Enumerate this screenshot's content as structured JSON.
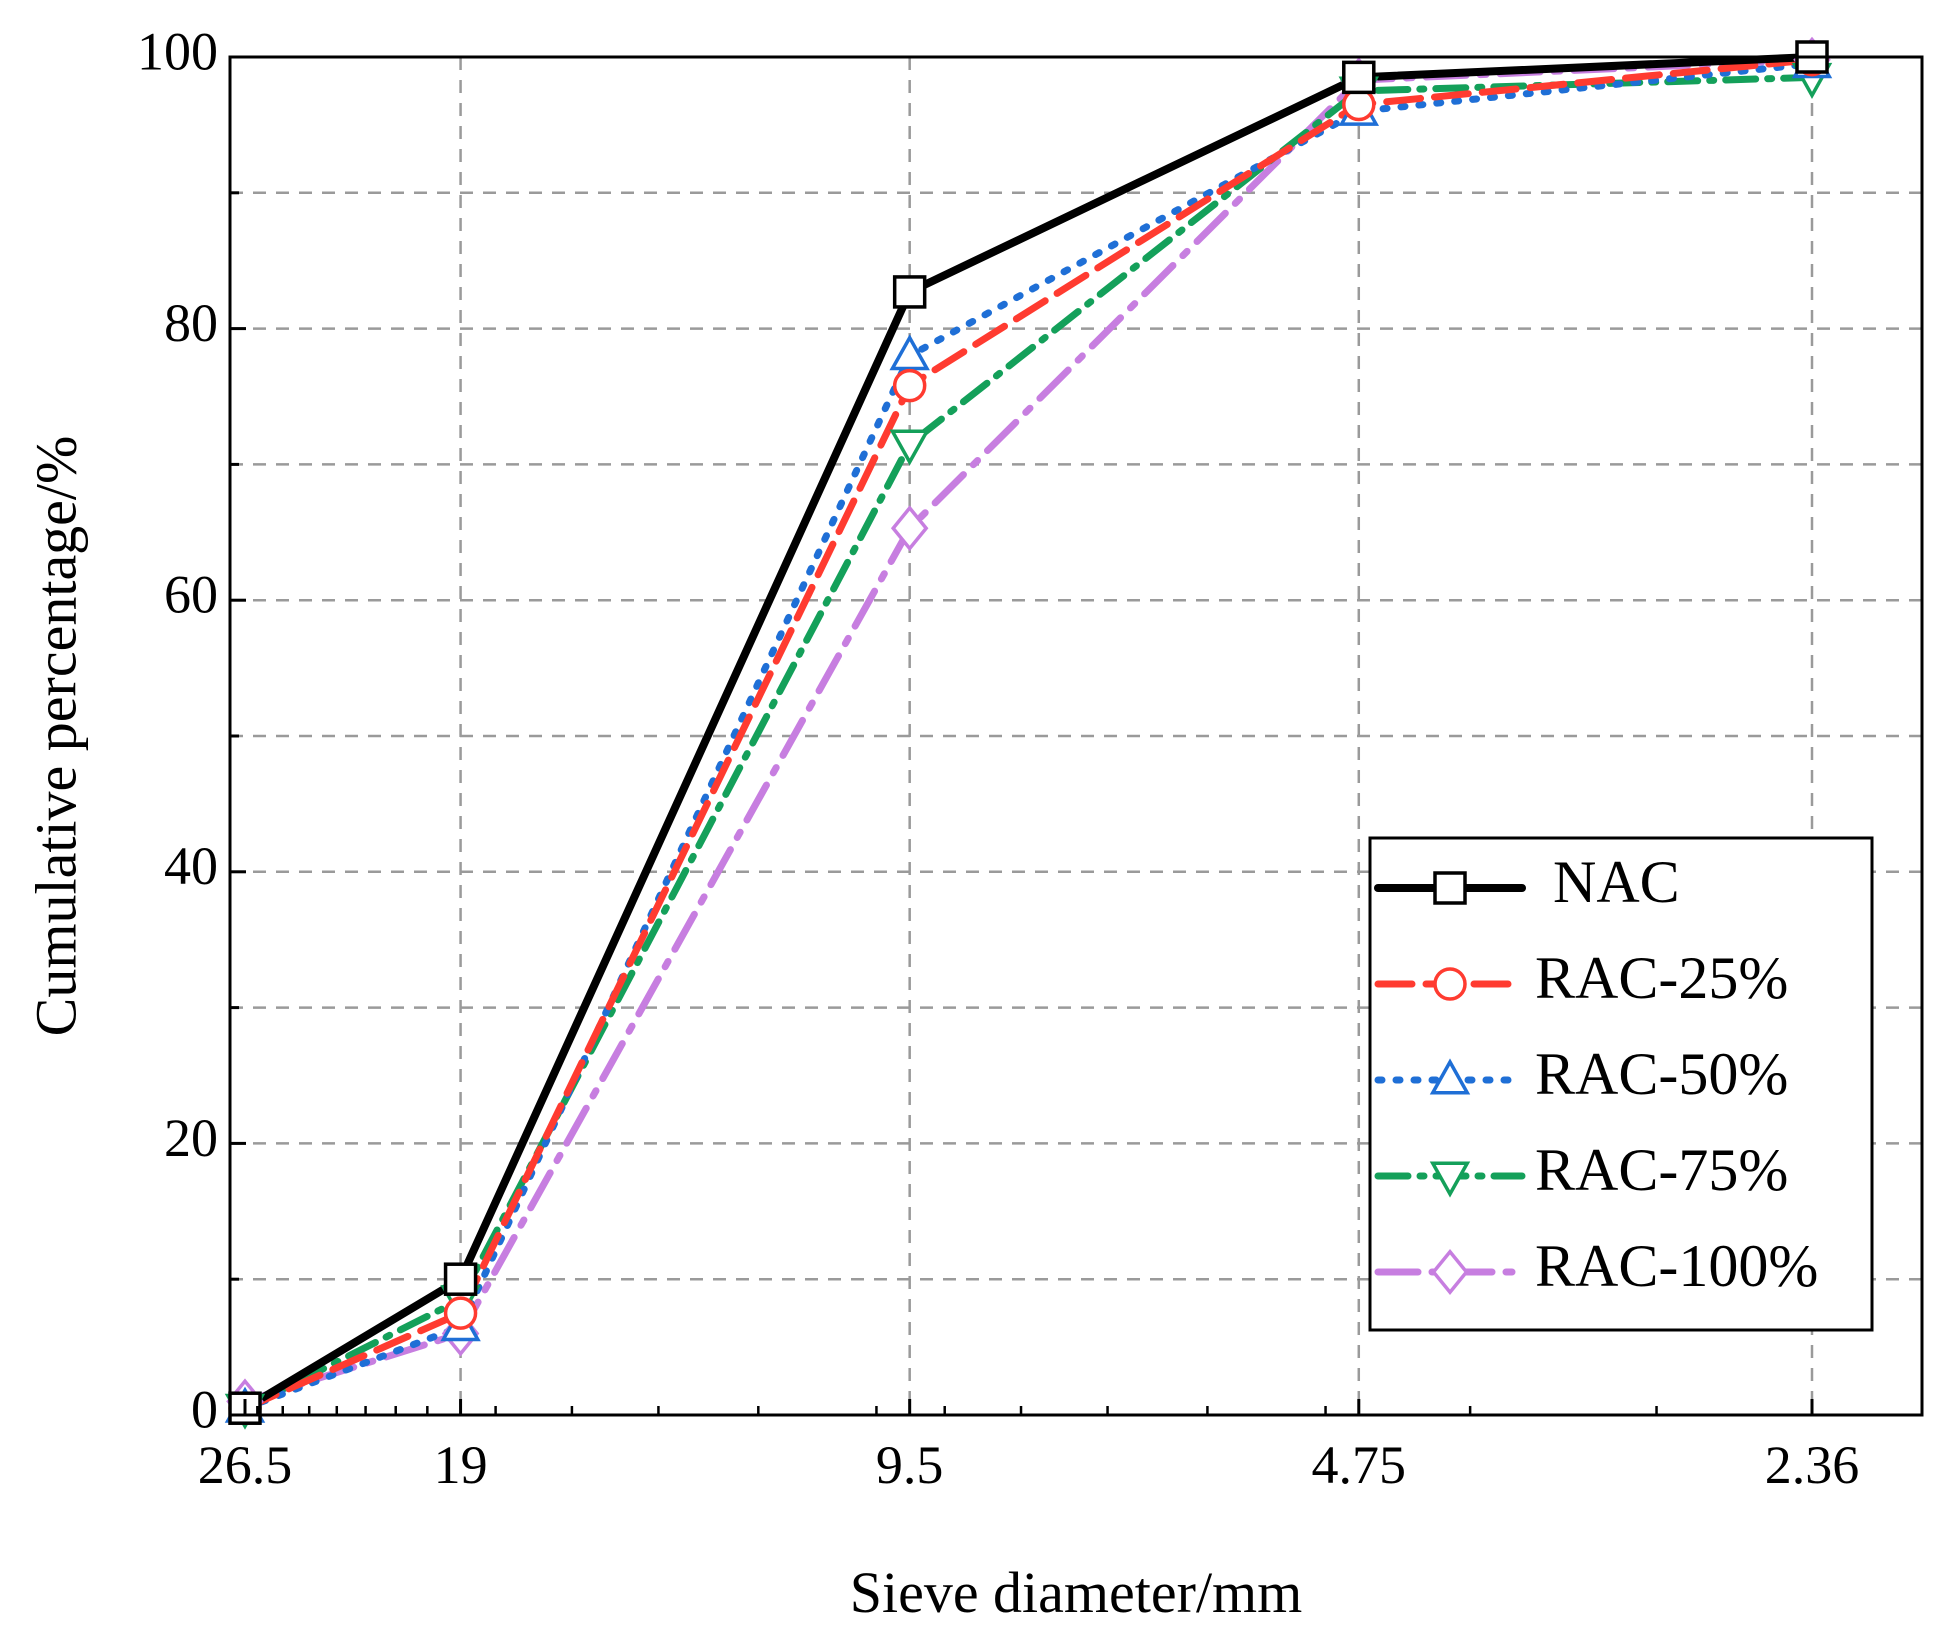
{
  "chart_data": {
    "type": "line",
    "title": "",
    "xlabel": "Sieve diameter/mm",
    "ylabel": "Cumulative percentage/%",
    "x_scale": "log-reversed",
    "x_categories": [
      "26.5",
      "19",
      "9.5",
      "4.75",
      "2.36"
    ],
    "x": [
      26.5,
      19,
      9.5,
      4.75,
      2.36
    ],
    "xlim": [
      26.5,
      2.36
    ],
    "ylim": [
      0,
      100
    ],
    "y_ticks": [
      0,
      20,
      40,
      60,
      80,
      100
    ],
    "y_tick_labels": [
      "0",
      "20",
      "40",
      "60",
      "80",
      "100"
    ],
    "grid": true,
    "legend_position": "bottom-right",
    "series": [
      {
        "name": "NAC",
        "values": [
          0.5,
          10,
          82.7,
          98.5,
          100
        ],
        "color": "#000000",
        "marker": "square",
        "dash": "solid"
      },
      {
        "name": "RAC-25%",
        "values": [
          0.5,
          7.5,
          75.8,
          96.5,
          99.8
        ],
        "color": "#ff3b30",
        "marker": "circle",
        "dash": "dash"
      },
      {
        "name": "RAC-50%",
        "values": [
          0.5,
          6.5,
          78.0,
          96.0,
          99.5
        ],
        "color": "#1f6fd6",
        "marker": "triangle-up",
        "dash": "dot"
      },
      {
        "name": "RAC-75%",
        "values": [
          0.5,
          8.5,
          71.5,
          97.5,
          98.5
        ],
        "color": "#14a05a",
        "marker": "triangle-down",
        "dash": "dash-dot"
      },
      {
        "name": "RAC-100%",
        "values": [
          1.0,
          6.0,
          65.3,
          98.3,
          99.8
        ],
        "color": "#c77ee0",
        "marker": "diamond",
        "dash": "dash-dot-long"
      }
    ]
  }
}
